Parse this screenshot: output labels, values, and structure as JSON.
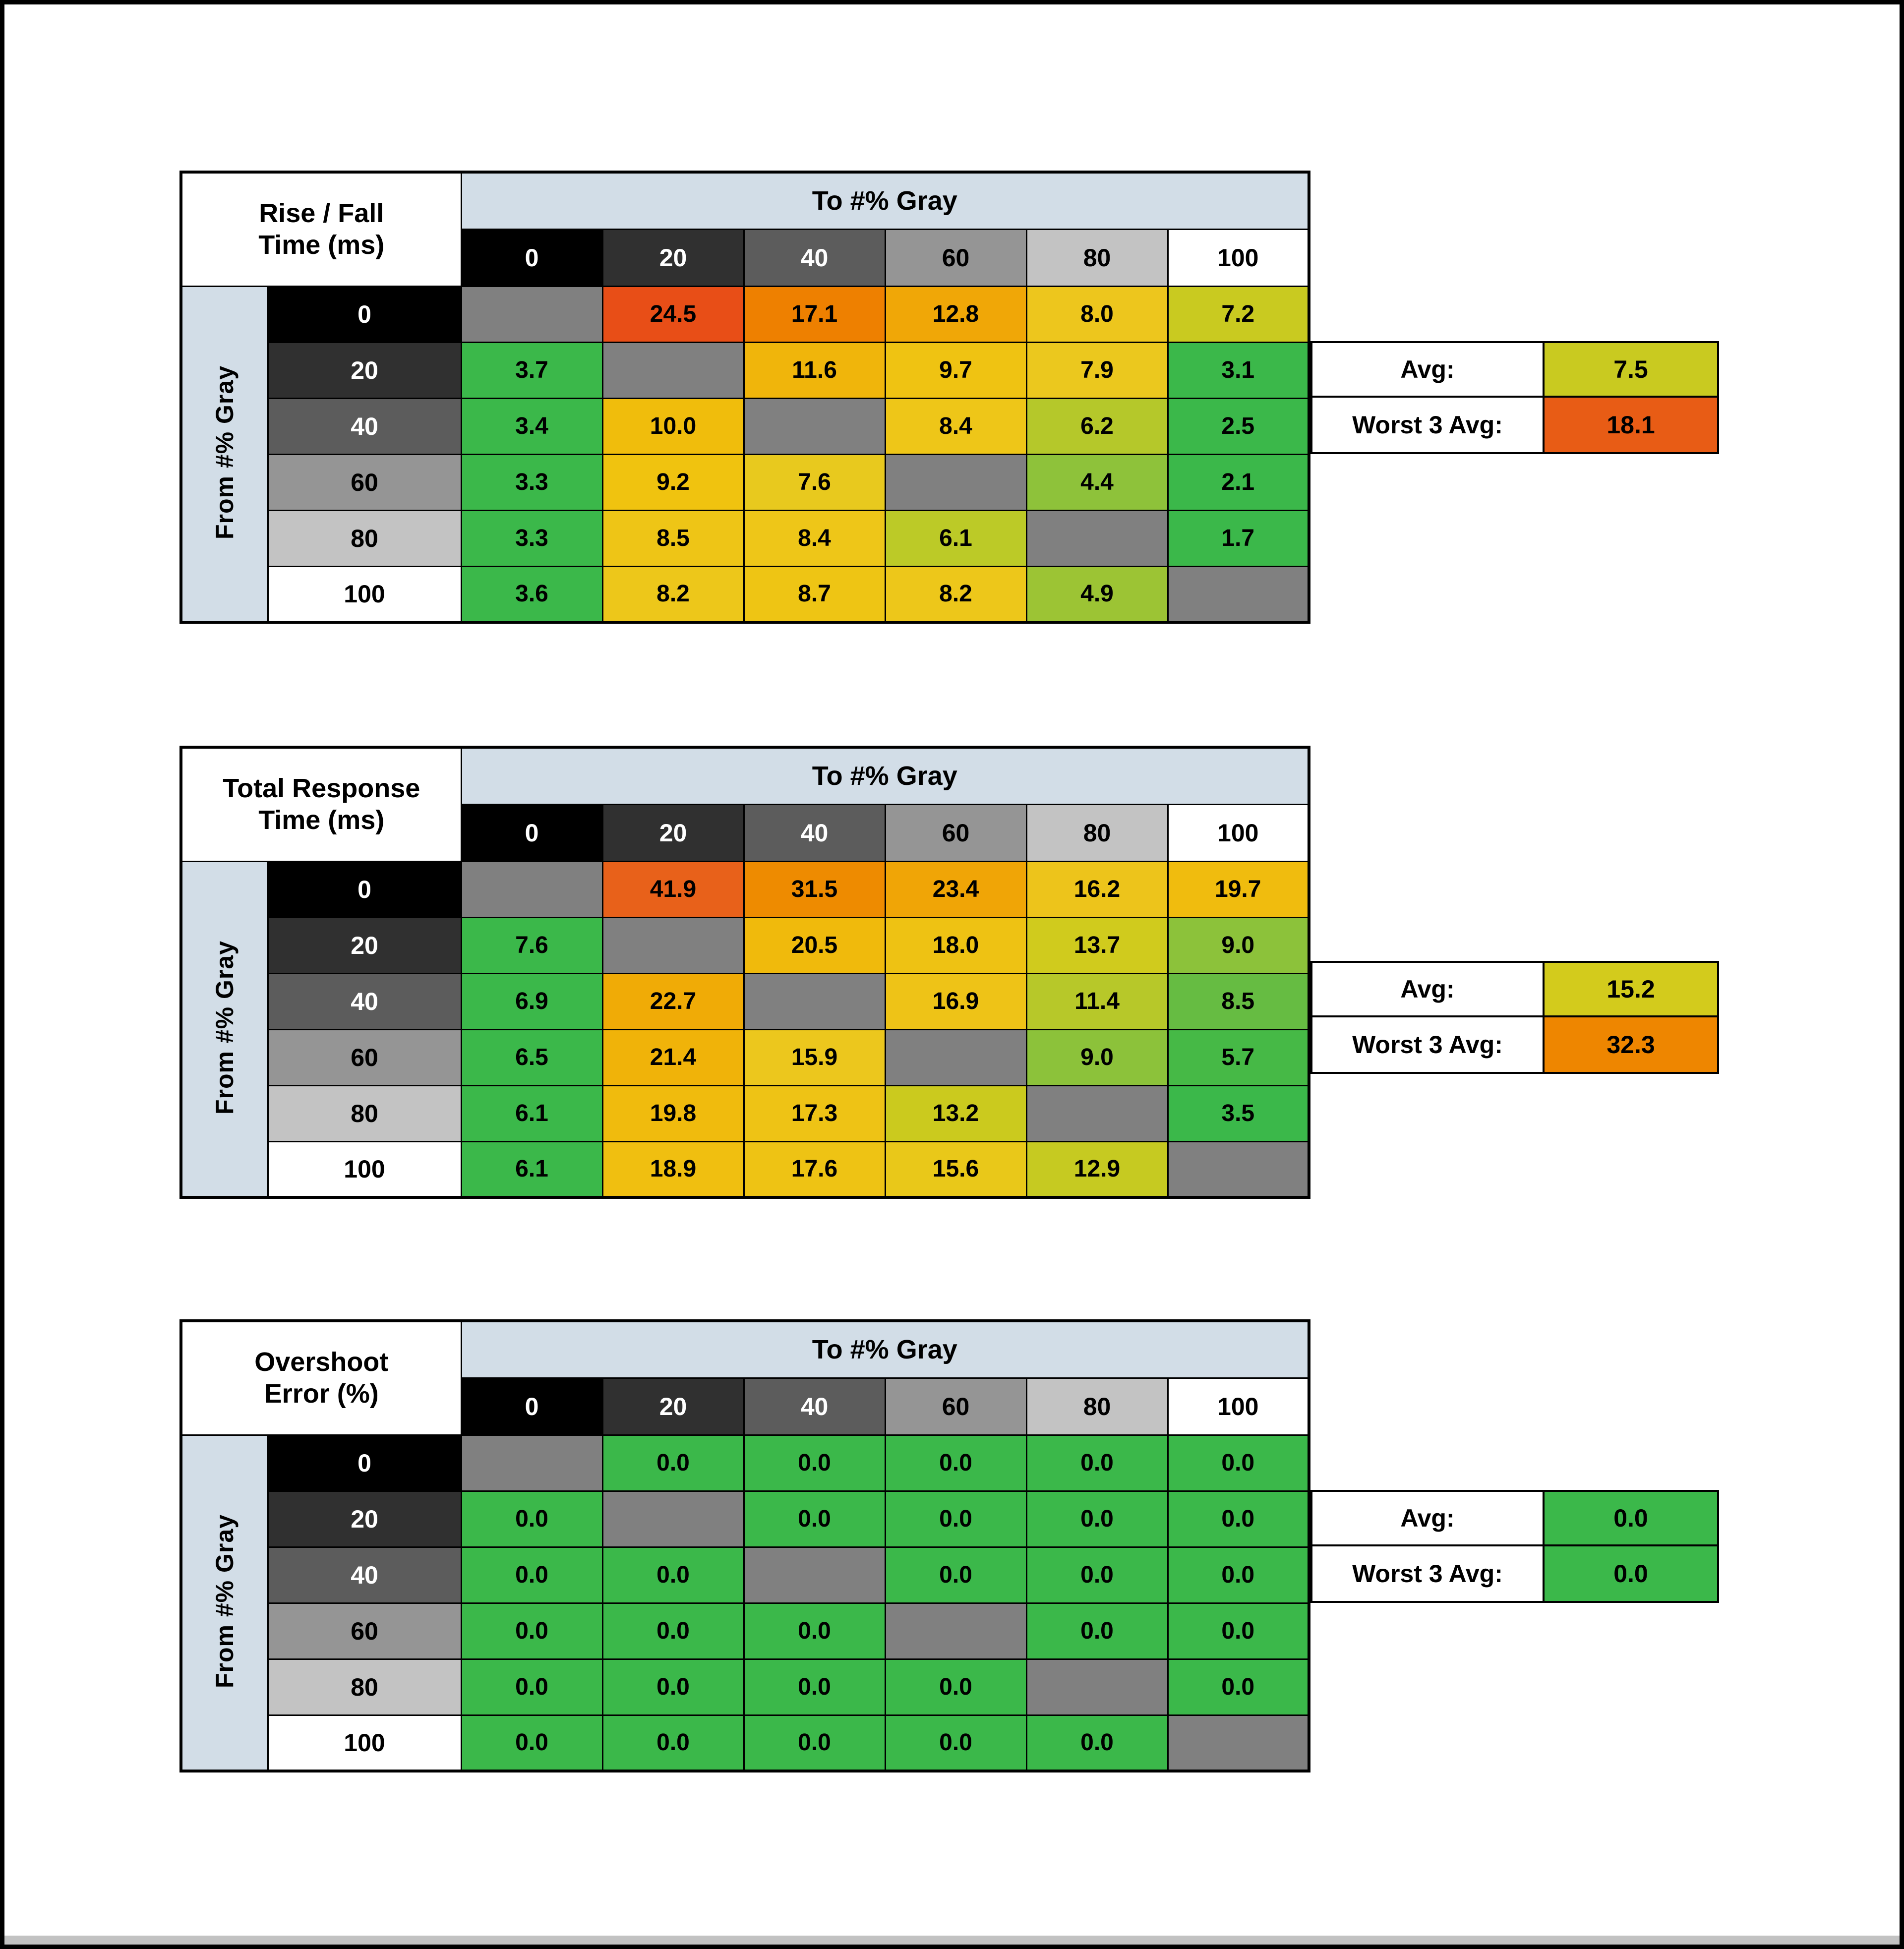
{
  "colors": {
    "header_blue": "#d2dde7",
    "diagonal_gray": "#808080",
    "page_bg": "#ffffff",
    "border_black": "#000000",
    "gray_bgs": [
      "#000000",
      "#303030",
      "#5c5c5c",
      "#959595",
      "#c3c3c3",
      "#ffffff"
    ],
    "gray_text": [
      "#ffffff",
      "#ffffff",
      "#ffffff",
      "#000000",
      "#000000",
      "#000000"
    ]
  },
  "tables": [
    {
      "name": "rise-fall-time",
      "title_lines": [
        "Rise / Fall",
        "Time (ms)"
      ],
      "to_header": "To #% Gray",
      "from_header": "From #% Gray",
      "col_labels": [
        "0",
        "20",
        "40",
        "60",
        "80",
        "100"
      ],
      "row_labels": [
        "0",
        "20",
        "40",
        "60",
        "80",
        "100"
      ],
      "cells": [
        [
          null,
          {
            "v": "24.5",
            "c": "#e84e17"
          },
          {
            "v": "17.1",
            "c": "#ee8000"
          },
          {
            "v": "12.8",
            "c": "#f0a707"
          },
          {
            "v": "8.0",
            "c": "#edc61d"
          },
          {
            "v": "7.2",
            "c": "#c9ca20"
          }
        ],
        [
          {
            "v": "3.7",
            "c": "#3bb84a"
          },
          null,
          {
            "v": "11.6",
            "c": "#f0b50b"
          },
          {
            "v": "9.7",
            "c": "#efc312"
          },
          {
            "v": "7.9",
            "c": "#ebc81e"
          },
          {
            "v": "3.1",
            "c": "#3bb84a"
          }
        ],
        [
          {
            "v": "3.4",
            "c": "#3bb84a"
          },
          {
            "v": "10.0",
            "c": "#f0bd0c"
          },
          null,
          {
            "v": "8.4",
            "c": "#eec618"
          },
          {
            "v": "6.2",
            "c": "#b5c82a"
          },
          {
            "v": "2.5",
            "c": "#3bb84a"
          }
        ],
        [
          {
            "v": "3.3",
            "c": "#3bb84a"
          },
          {
            "v": "9.2",
            "c": "#f0c30f"
          },
          {
            "v": "7.6",
            "c": "#e8c91e"
          },
          null,
          {
            "v": "4.4",
            "c": "#8ec23a"
          },
          {
            "v": "2.1",
            "c": "#3bb84a"
          }
        ],
        [
          {
            "v": "3.3",
            "c": "#3bb84a"
          },
          {
            "v": "8.5",
            "c": "#eec516"
          },
          {
            "v": "8.4",
            "c": "#eec618"
          },
          {
            "v": "6.1",
            "c": "#bcca27"
          },
          null,
          {
            "v": "1.7",
            "c": "#3bb84a"
          }
        ],
        [
          {
            "v": "3.6",
            "c": "#3bb84a"
          },
          {
            "v": "8.2",
            "c": "#edc71a"
          },
          {
            "v": "8.7",
            "c": "#eec514"
          },
          {
            "v": "8.2",
            "c": "#edc71a"
          },
          {
            "v": "4.9",
            "c": "#9cc434"
          },
          null
        ]
      ],
      "stats": [
        {
          "label": "Avg:",
          "value": "7.5",
          "color": "#c9ca20"
        },
        {
          "label": "Worst 3 Avg:",
          "value": "18.1",
          "color": "#e85c15"
        }
      ]
    },
    {
      "name": "total-response-time",
      "title_lines": [
        "Total Response",
        "Time (ms)"
      ],
      "to_header": "To #% Gray",
      "from_header": "From #% Gray",
      "col_labels": [
        "0",
        "20",
        "40",
        "60",
        "80",
        "100"
      ],
      "row_labels": [
        "0",
        "20",
        "40",
        "60",
        "80",
        "100"
      ],
      "cells": [
        [
          null,
          {
            "v": "41.9",
            "c": "#e8611a"
          },
          {
            "v": "31.5",
            "c": "#ee8b00"
          },
          {
            "v": "23.4",
            "c": "#f0a506"
          },
          {
            "v": "16.2",
            "c": "#edc41b"
          },
          {
            "v": "19.7",
            "c": "#f0bc0e"
          }
        ],
        [
          {
            "v": "7.6",
            "c": "#3bb84a"
          },
          null,
          {
            "v": "20.5",
            "c": "#f0ba0c"
          },
          {
            "v": "18.0",
            "c": "#eec213"
          },
          {
            "v": "13.7",
            "c": "#d0cb1d"
          },
          {
            "v": "9.0",
            "c": "#8cc23a"
          }
        ],
        [
          {
            "v": "6.9",
            "c": "#3bb84a"
          },
          {
            "v": "22.7",
            "c": "#f0ab06"
          },
          null,
          {
            "v": "16.9",
            "c": "#eec317"
          },
          {
            "v": "11.4",
            "c": "#b7c829"
          },
          {
            "v": "8.5",
            "c": "#66bc42"
          }
        ],
        [
          {
            "v": "6.5",
            "c": "#3bb84a"
          },
          {
            "v": "21.4",
            "c": "#f0b309"
          },
          {
            "v": "15.9",
            "c": "#ecc71d"
          },
          null,
          {
            "v": "9.0",
            "c": "#8cc23a"
          },
          {
            "v": "5.7",
            "c": "#46b946"
          }
        ],
        [
          {
            "v": "6.1",
            "c": "#3bb84a"
          },
          {
            "v": "19.8",
            "c": "#f0bb0d"
          },
          {
            "v": "17.3",
            "c": "#eec315"
          },
          {
            "v": "13.2",
            "c": "#cbca1e"
          },
          null,
          {
            "v": "3.5",
            "c": "#3bb84a"
          }
        ],
        [
          {
            "v": "6.1",
            "c": "#3bb84a"
          },
          {
            "v": "18.9",
            "c": "#f0bf10"
          },
          {
            "v": "17.6",
            "c": "#eec314"
          },
          {
            "v": "15.6",
            "c": "#e9c819"
          },
          {
            "v": "12.9",
            "c": "#c6ca21"
          },
          null
        ]
      ],
      "stats": [
        {
          "label": "Avg:",
          "value": "15.2",
          "color": "#d3cb1c"
        },
        {
          "label": "Worst 3 Avg:",
          "value": "32.3",
          "color": "#ee8600"
        }
      ]
    },
    {
      "name": "overshoot-error",
      "title_lines": [
        "Overshoot",
        "Error (%)"
      ],
      "to_header": "To #% Gray",
      "from_header": "From #% Gray",
      "col_labels": [
        "0",
        "20",
        "40",
        "60",
        "80",
        "100"
      ],
      "row_labels": [
        "0",
        "20",
        "40",
        "60",
        "80",
        "100"
      ],
      "cells": [
        [
          null,
          {
            "v": "0.0",
            "c": "#3bb84a"
          },
          {
            "v": "0.0",
            "c": "#3bb84a"
          },
          {
            "v": "0.0",
            "c": "#3bb84a"
          },
          {
            "v": "0.0",
            "c": "#3bb84a"
          },
          {
            "v": "0.0",
            "c": "#3bb84a"
          }
        ],
        [
          {
            "v": "0.0",
            "c": "#3bb84a"
          },
          null,
          {
            "v": "0.0",
            "c": "#3bb84a"
          },
          {
            "v": "0.0",
            "c": "#3bb84a"
          },
          {
            "v": "0.0",
            "c": "#3bb84a"
          },
          {
            "v": "0.0",
            "c": "#3bb84a"
          }
        ],
        [
          {
            "v": "0.0",
            "c": "#3bb84a"
          },
          {
            "v": "0.0",
            "c": "#3bb84a"
          },
          null,
          {
            "v": "0.0",
            "c": "#3bb84a"
          },
          {
            "v": "0.0",
            "c": "#3bb84a"
          },
          {
            "v": "0.0",
            "c": "#3bb84a"
          }
        ],
        [
          {
            "v": "0.0",
            "c": "#3bb84a"
          },
          {
            "v": "0.0",
            "c": "#3bb84a"
          },
          {
            "v": "0.0",
            "c": "#3bb84a"
          },
          null,
          {
            "v": "0.0",
            "c": "#3bb84a"
          },
          {
            "v": "0.0",
            "c": "#3bb84a"
          }
        ],
        [
          {
            "v": "0.0",
            "c": "#3bb84a"
          },
          {
            "v": "0.0",
            "c": "#3bb84a"
          },
          {
            "v": "0.0",
            "c": "#3bb84a"
          },
          {
            "v": "0.0",
            "c": "#3bb84a"
          },
          null,
          {
            "v": "0.0",
            "c": "#3bb84a"
          }
        ],
        [
          {
            "v": "0.0",
            "c": "#3bb84a"
          },
          {
            "v": "0.0",
            "c": "#3bb84a"
          },
          {
            "v": "0.0",
            "c": "#3bb84a"
          },
          {
            "v": "0.0",
            "c": "#3bb84a"
          },
          {
            "v": "0.0",
            "c": "#3bb84a"
          },
          null
        ]
      ],
      "stats": [
        {
          "label": "Avg:",
          "value": "0.0",
          "color": "#3bb84a"
        },
        {
          "label": "Worst 3 Avg:",
          "value": "0.0",
          "color": "#3bb84a"
        }
      ]
    }
  ],
  "chart_data": [
    {
      "type": "heatmap",
      "title": "Rise / Fall Time (ms)",
      "xlabel": "To #% Gray",
      "ylabel": "From #% Gray",
      "x_categories": [
        0,
        20,
        40,
        60,
        80,
        100
      ],
      "y_categories": [
        0,
        20,
        40,
        60,
        80,
        100
      ],
      "values": [
        [
          null,
          24.5,
          17.1,
          12.8,
          8.0,
          7.2
        ],
        [
          3.7,
          null,
          11.6,
          9.7,
          7.9,
          3.1
        ],
        [
          3.4,
          10.0,
          null,
          8.4,
          6.2,
          2.5
        ],
        [
          3.3,
          9.2,
          7.6,
          null,
          4.4,
          2.1
        ],
        [
          3.3,
          8.5,
          8.4,
          6.1,
          null,
          1.7
        ],
        [
          3.6,
          8.2,
          8.7,
          8.2,
          4.9,
          null
        ]
      ],
      "avg": 7.5,
      "worst_3_avg": 18.1
    },
    {
      "type": "heatmap",
      "title": "Total Response Time (ms)",
      "xlabel": "To #% Gray",
      "ylabel": "From #% Gray",
      "x_categories": [
        0,
        20,
        40,
        60,
        80,
        100
      ],
      "y_categories": [
        0,
        20,
        40,
        60,
        80,
        100
      ],
      "values": [
        [
          null,
          41.9,
          31.5,
          23.4,
          16.2,
          19.7
        ],
        [
          7.6,
          null,
          20.5,
          18.0,
          13.7,
          9.0
        ],
        [
          6.9,
          22.7,
          null,
          16.9,
          11.4,
          8.5
        ],
        [
          6.5,
          21.4,
          15.9,
          null,
          9.0,
          5.7
        ],
        [
          6.1,
          19.8,
          17.3,
          13.2,
          null,
          3.5
        ],
        [
          6.1,
          18.9,
          17.6,
          15.6,
          12.9,
          null
        ]
      ],
      "avg": 15.2,
      "worst_3_avg": 32.3
    },
    {
      "type": "heatmap",
      "title": "Overshoot Error (%)",
      "xlabel": "To #% Gray",
      "ylabel": "From #% Gray",
      "x_categories": [
        0,
        20,
        40,
        60,
        80,
        100
      ],
      "y_categories": [
        0,
        20,
        40,
        60,
        80,
        100
      ],
      "values": [
        [
          null,
          0.0,
          0.0,
          0.0,
          0.0,
          0.0
        ],
        [
          0.0,
          null,
          0.0,
          0.0,
          0.0,
          0.0
        ],
        [
          0.0,
          0.0,
          null,
          0.0,
          0.0,
          0.0
        ],
        [
          0.0,
          0.0,
          0.0,
          null,
          0.0,
          0.0
        ],
        [
          0.0,
          0.0,
          0.0,
          0.0,
          null,
          0.0
        ],
        [
          0.0,
          0.0,
          0.0,
          0.0,
          0.0,
          null
        ]
      ],
      "avg": 0.0,
      "worst_3_avg": 0.0
    }
  ]
}
